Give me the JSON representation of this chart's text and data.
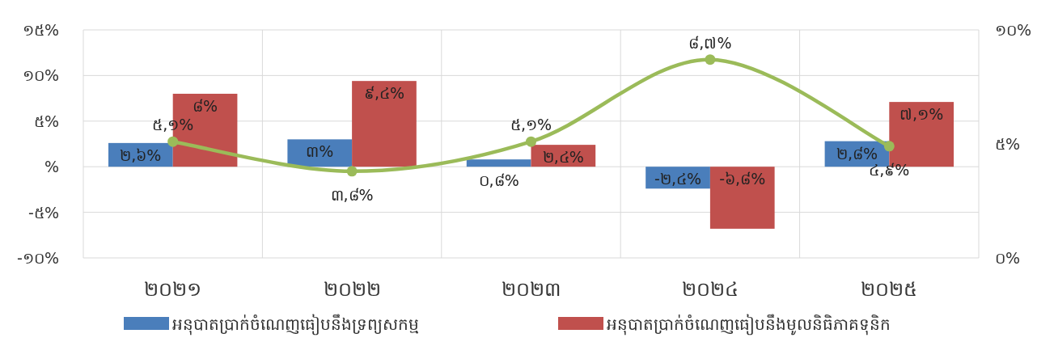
{
  "chart_data": {
    "type": "bar",
    "categories": [
      "២០២១",
      "២០២២",
      "២០២៣",
      "២០២៤",
      "២០២៥"
    ],
    "series": [
      {
        "name": "អនុបាតប្រាក់ចំណេញធៀបនឹងទ្រព្យសកម្ម",
        "color": "#4a7ebb",
        "values": [
          2.6,
          3,
          0.8,
          -2.4,
          2.8
        ],
        "value_labels": [
          "២,៦%",
          "៣%",
          "០,៨%",
          "-២,៤%",
          "២,៨%"
        ]
      },
      {
        "name": "អនុបាតប្រាក់ចំណេញធៀបនឹងមូលនិធិភាគទុនិក",
        "color": "#c0504d",
        "values": [
          8,
          9.4,
          2.4,
          -6.8,
          7.1
        ],
        "value_labels": [
          "៨%",
          "៩,៤%",
          "២,៤%",
          "-៦,៨%",
          "៧,១%"
        ]
      },
      {
        "type": "line",
        "axis": "y2",
        "color": "#9bbb59",
        "marker": "circle",
        "values": [
          5.1,
          3.8,
          5.1,
          8.7,
          4.9
        ],
        "value_labels": [
          "៥,១%",
          "៣,៨%",
          "៥,១%",
          "៨,៧%",
          "៤,៩%"
        ]
      }
    ],
    "ylim": [
      -10,
      15
    ],
    "yticks": [
      {
        "value": -10,
        "label": "-១០%"
      },
      {
        "value": -5,
        "label": "-៥%"
      },
      {
        "value": 0,
        "label": "%"
      },
      {
        "value": 5,
        "label": "៥%"
      },
      {
        "value": 10,
        "label": "១០%"
      },
      {
        "value": 15,
        "label": "១៥%"
      }
    ],
    "y2lim": [
      0,
      10
    ],
    "y2ticks": [
      {
        "value": 0,
        "label": "០%"
      },
      {
        "value": 5,
        "label": "៥%"
      },
      {
        "value": 10,
        "label": "១០%"
      }
    ],
    "grid": true,
    "legend": "bottom"
  }
}
